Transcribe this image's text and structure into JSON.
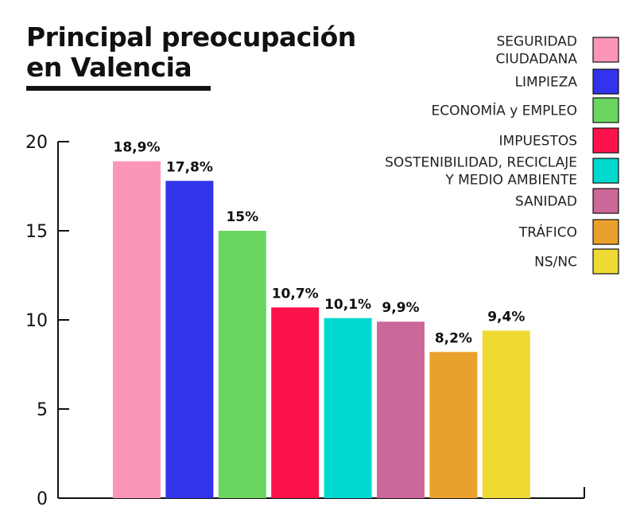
{
  "chart_data": {
    "type": "bar",
    "title": "Principal preocupación en Valencia",
    "title_lines": [
      "Principal preocupación",
      "en Valencia"
    ],
    "xlabel": "",
    "ylabel": "",
    "ylim": [
      0,
      20
    ],
    "yticks": [
      "0",
      "5",
      "10",
      "15",
      "20"
    ],
    "grid": false,
    "legend_position": "top-right",
    "categories": [
      "SEGURIDAD CIUDADANA",
      "LIMPIEZA",
      "ECONOMÍA y EMPLEO",
      "IMPUESTOS",
      "SOSTENIBILIDAD, RECICLAJE Y MEDIO AMBIENTE",
      "SANIDAD",
      "TRÁFICO",
      "NS/NC"
    ],
    "values": [
      18.9,
      17.8,
      15,
      10.7,
      10.1,
      9.9,
      8.2,
      9.4
    ],
    "data_labels": [
      "18,9%",
      "17,8%",
      "15%",
      "10,7%",
      "10,1%",
      "9,9%",
      "8,2%",
      "9,4%"
    ],
    "colors": [
      "#fc96b8",
      "#3333ec",
      "#6ad660",
      "#fc124b",
      "#00d9cf",
      "#cc6799",
      "#e9a02c",
      "#efd933"
    ],
    "legend": [
      {
        "lines": [
          "SEGURIDAD",
          "CIUDADANA"
        ],
        "color": "#fc96b8"
      },
      {
        "lines": [
          "LIMPIEZA"
        ],
        "color": "#3333ec"
      },
      {
        "lines": [
          "ECONOMÍA y EMPLEO"
        ],
        "color": "#6ad660"
      },
      {
        "lines": [
          "IMPUESTOS"
        ],
        "color": "#fc124b"
      },
      {
        "lines": [
          "SOSTENIBILIDAD, RECICLAJE",
          "Y MEDIO AMBIENTE"
        ],
        "color": "#00d9cf"
      },
      {
        "lines": [
          "SANIDAD"
        ],
        "color": "#cc6799"
      },
      {
        "lines": [
          "TRÁFICO"
        ],
        "color": "#e9a02c"
      },
      {
        "lines": [
          "NS/NC"
        ],
        "color": "#efd933"
      }
    ]
  }
}
